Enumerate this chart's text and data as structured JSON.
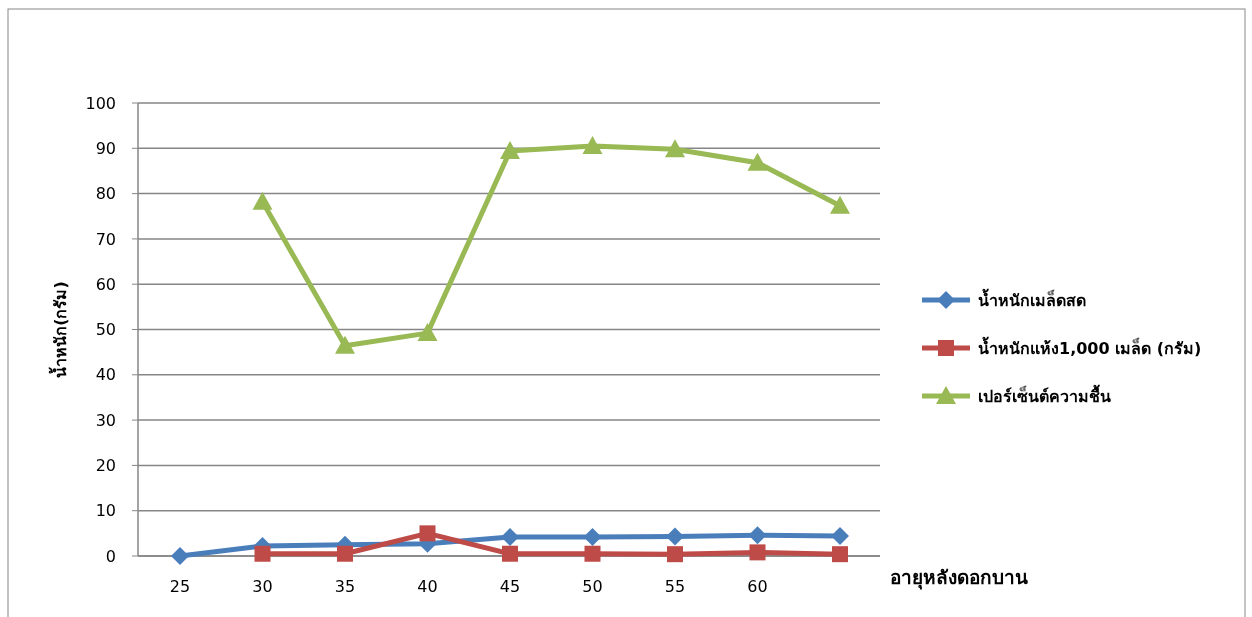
{
  "chart_data": {
    "type": "line",
    "xlabel": "อายุหลังดอกบาน",
    "ylabel": "น้ำหนัก(กรัม)",
    "categories": [
      "25",
      "30",
      "35",
      "40",
      "45",
      "50",
      "55",
      "60",
      null
    ],
    "ylim": [
      0,
      100
    ],
    "yticks": [
      0,
      10,
      20,
      30,
      40,
      50,
      60,
      70,
      80,
      90,
      100
    ],
    "grid": "y",
    "legend": "right",
    "series": [
      {
        "name": "น้ำหนักเมล็ดสด",
        "color": "#4a7ebb",
        "marker": "diamond",
        "values": [
          0,
          2.2,
          2.5,
          2.7,
          4.2,
          4.2,
          4.3,
          4.6,
          4.4
        ]
      },
      {
        "name": "น้ำหนักแห้ง1,000 เมล็ด (กรัม)",
        "color": "#be4b48",
        "marker": "square",
        "values": [
          null,
          0.5,
          0.5,
          5.0,
          0.5,
          0.5,
          0.4,
          0.8,
          0.4
        ]
      },
      {
        "name": "เปอร์เซ็นต์ความชื้น",
        "color": "#98b954",
        "marker": "triangle",
        "values": [
          null,
          78.2,
          46.4,
          49.2,
          89.4,
          90.5,
          89.8,
          86.8,
          77.3
        ]
      }
    ]
  }
}
